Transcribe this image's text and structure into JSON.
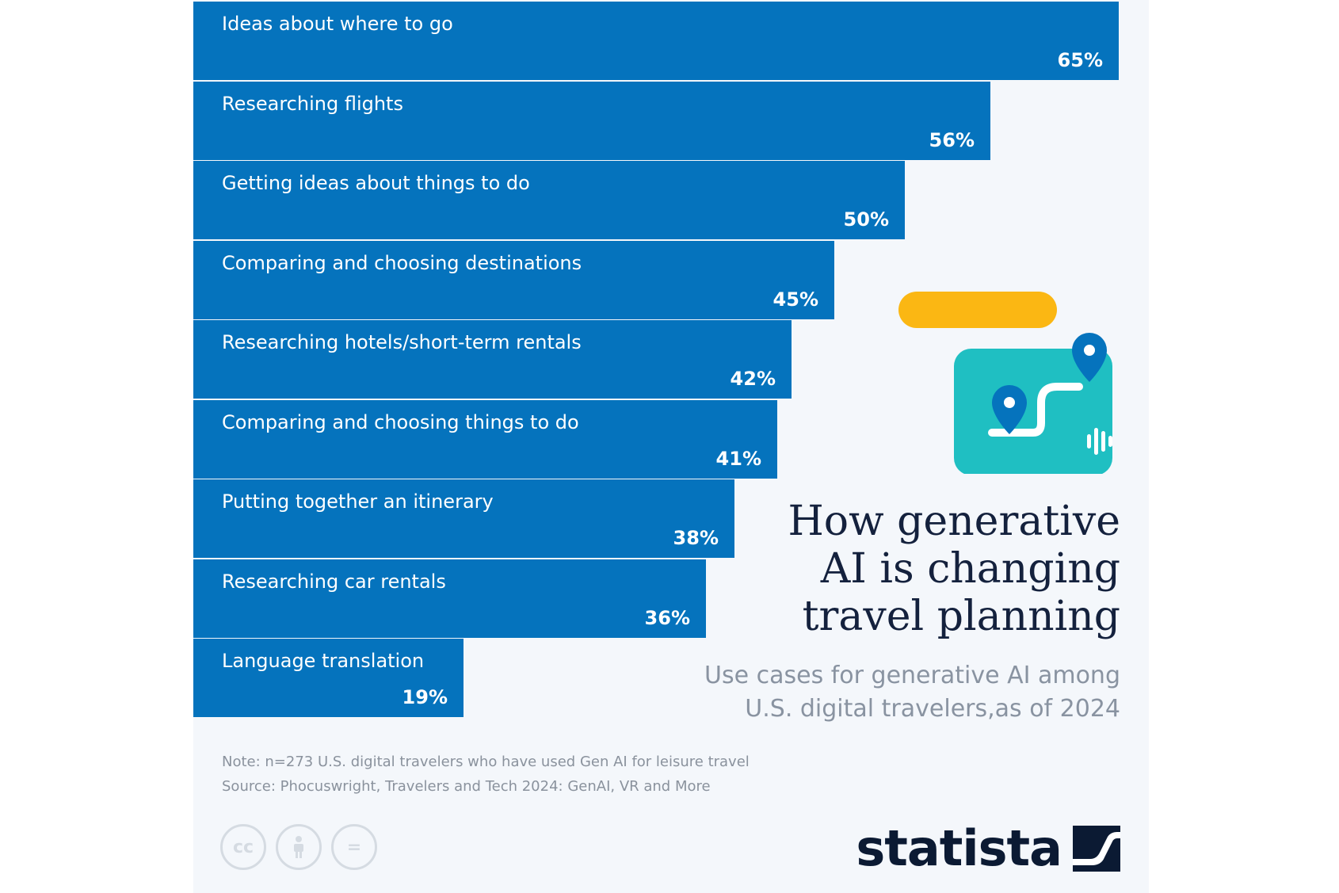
{
  "chart_data": {
    "type": "bar",
    "orientation": "horizontal",
    "title": "How generative AI is changing travel planning",
    "subtitle": "Use cases for generative AI among U.S. digital travelers,as of 2024",
    "categories": [
      "Ideas about where to go",
      "Researching flights",
      "Getting ideas about things to do",
      "Comparing and choosing destinations",
      "Researching hotels/short-term rentals",
      "Comparing and choosing things to do",
      "Putting together an itinerary",
      "Researching car rentals",
      "Language translation"
    ],
    "values": [
      65,
      56,
      50,
      45,
      42,
      41,
      38,
      36,
      19
    ],
    "value_labels": [
      "65%",
      "56%",
      "50%",
      "45%",
      "42%",
      "41%",
      "38%",
      "36%",
      "19%"
    ],
    "unit": "%",
    "bar_color": "#0573bd",
    "grid": false,
    "legend": "none"
  },
  "title_lines": [
    "How generative",
    "AI is changing",
    "travel planning"
  ],
  "subtitle_lines": [
    "Use cases for generative AI among",
    "U.S. digital travelers,as of 2024"
  ],
  "note": "Note: n=273 U.S. digital travelers who have used Gen AI for leisure travel",
  "source": "Source: Phocuswright, Travelers and Tech 2024: GenAI, VR and More",
  "license_icons": [
    "cc-icon",
    "attribution-icon",
    "no-derivatives-icon"
  ],
  "license_glyphs": [
    "cc",
    "="
  ],
  "brand": "statista",
  "colors": {
    "bar": "#0573bd",
    "title": "#14213d",
    "subtitle": "#8993a1",
    "illustration_teal": "#1fbfc2",
    "illustration_yellow": "#fbb713",
    "pin": "#0573bd"
  }
}
